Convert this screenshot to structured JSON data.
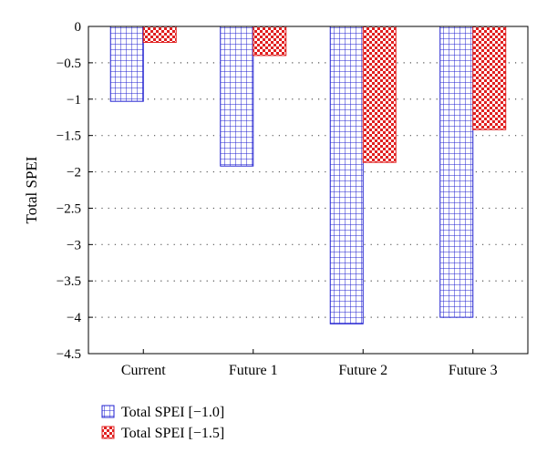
{
  "chart_data": {
    "type": "bar",
    "title": "",
    "xlabel": "",
    "ylabel": "Total SPEI",
    "ylim": [
      -4.5,
      0
    ],
    "yticks": [
      0,
      -0.5,
      -1,
      -1.5,
      -2,
      -2.5,
      -3,
      -3.5,
      -4,
      -4.5
    ],
    "ytick_labels": [
      "0",
      "-0.5",
      "-1",
      "-1.5",
      "-2",
      "-2.5",
      "-3",
      "-3.5",
      "-4",
      "-4.5"
    ],
    "grid": "horizontal-dotted",
    "legend_position": "bottom-left",
    "categories": [
      "Current",
      "Future 1",
      "Future 2",
      "Future 3"
    ],
    "series": [
      {
        "name": "Total SPEI [−1.0]",
        "values": [
          -1.03,
          -1.92,
          -4.09,
          -4.0
        ],
        "color": "#2020d0",
        "pattern": "grid"
      },
      {
        "name": "Total SPEI [−1.5]",
        "values": [
          -0.22,
          -0.4,
          -1.87,
          -1.42
        ],
        "color": "#e02020",
        "pattern": "checker"
      }
    ]
  }
}
